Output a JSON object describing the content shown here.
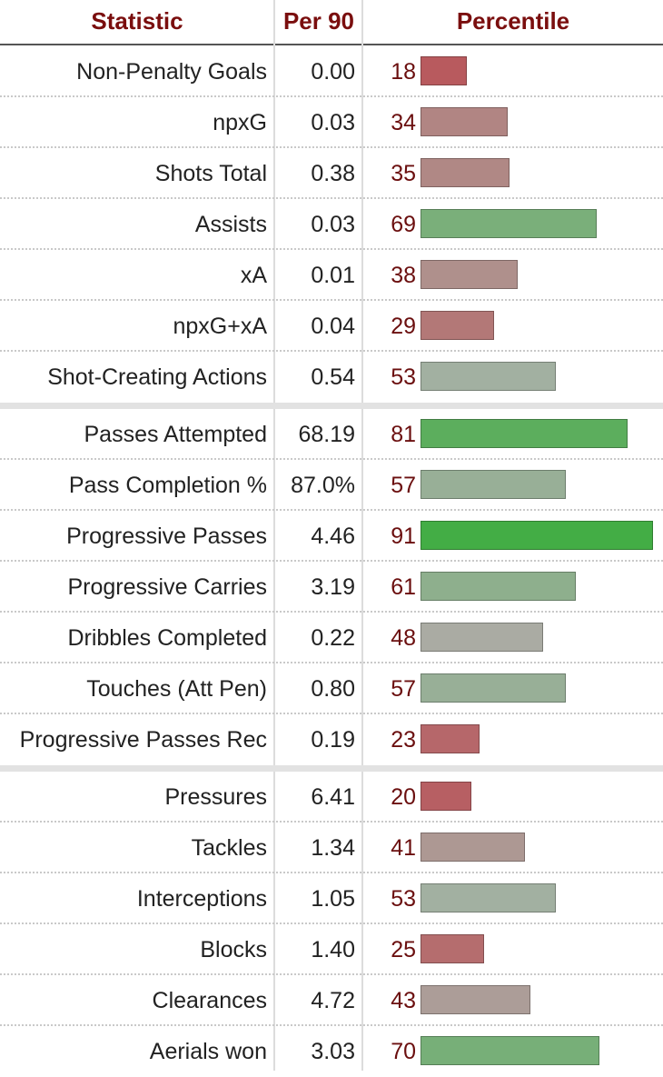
{
  "header": {
    "statistic": "Statistic",
    "per90": "Per 90",
    "percentile": "Percentile"
  },
  "colors": {
    "header_text": "#7a0e0e",
    "percentile_text": "#6b0f0f",
    "low": "#b85a5e",
    "mid": "#a9b0a8",
    "high": "#43ad45"
  },
  "chart_data": {
    "type": "table",
    "columns": [
      "Statistic",
      "Per 90",
      "Percentile"
    ],
    "xlim": [
      0,
      100
    ],
    "rows": [
      {
        "stat": "Non-Penalty Goals",
        "per90": "0.00",
        "percentile": 18
      },
      {
        "stat": "npxG",
        "per90": "0.03",
        "percentile": 34
      },
      {
        "stat": "Shots Total",
        "per90": "0.38",
        "percentile": 35
      },
      {
        "stat": "Assists",
        "per90": "0.03",
        "percentile": 69
      },
      {
        "stat": "xA",
        "per90": "0.01",
        "percentile": 38
      },
      {
        "stat": "npxG+xA",
        "per90": "0.04",
        "percentile": 29
      },
      {
        "stat": "Shot-Creating Actions",
        "per90": "0.54",
        "percentile": 53
      },
      {
        "stat": "Passes Attempted",
        "per90": "68.19",
        "percentile": 81
      },
      {
        "stat": "Pass Completion %",
        "per90": "87.0%",
        "percentile": 57
      },
      {
        "stat": "Progressive Passes",
        "per90": "4.46",
        "percentile": 91
      },
      {
        "stat": "Progressive Carries",
        "per90": "3.19",
        "percentile": 61
      },
      {
        "stat": "Dribbles Completed",
        "per90": "0.22",
        "percentile": 48
      },
      {
        "stat": "Touches (Att Pen)",
        "per90": "0.80",
        "percentile": 57
      },
      {
        "stat": "Progressive Passes Rec",
        "per90": "0.19",
        "percentile": 23
      },
      {
        "stat": "Pressures",
        "per90": "6.41",
        "percentile": 20
      },
      {
        "stat": "Tackles",
        "per90": "1.34",
        "percentile": 41
      },
      {
        "stat": "Interceptions",
        "per90": "1.05",
        "percentile": 53
      },
      {
        "stat": "Blocks",
        "per90": "1.40",
        "percentile": 25
      },
      {
        "stat": "Clearances",
        "per90": "4.72",
        "percentile": 43
      },
      {
        "stat": "Aerials won",
        "per90": "3.03",
        "percentile": 70
      }
    ]
  }
}
